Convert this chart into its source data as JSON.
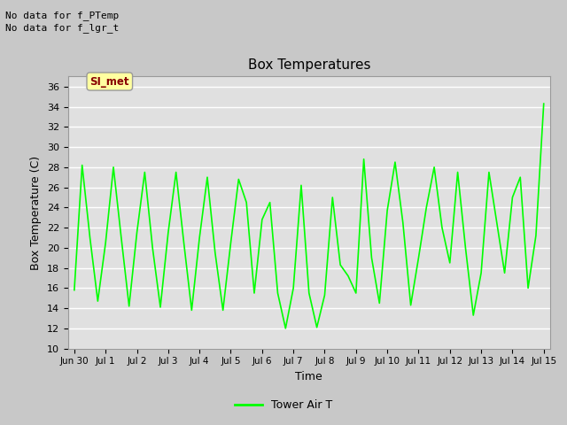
{
  "title": "Box Temperatures",
  "xlabel": "Time",
  "ylabel": "Box Temperature (C)",
  "text_no_data_1": "No data for f_PTemp",
  "text_no_data_2": "No data for f_lgr_t",
  "legend_label": "Tower Air T",
  "legend_color": "#00FF00",
  "line_color": "#00FF00",
  "fig_facecolor": "#C8C8C8",
  "axes_facecolor": "#E0E0E0",
  "ylim": [
    10,
    37
  ],
  "yticks": [
    10,
    12,
    14,
    16,
    18,
    20,
    22,
    24,
    26,
    28,
    30,
    32,
    34,
    36
  ],
  "si_met_label": "SI_met",
  "si_met_color_bg": "#FFFFA0",
  "si_met_color_text": "#880000",
  "x_data": [
    0.0,
    0.25,
    0.5,
    0.75,
    1.0,
    1.25,
    1.5,
    1.75,
    2.0,
    2.25,
    2.5,
    2.75,
    3.0,
    3.25,
    3.5,
    3.75,
    4.0,
    4.25,
    4.5,
    4.75,
    5.0,
    5.25,
    5.5,
    5.75,
    6.0,
    6.25,
    6.5,
    6.75,
    7.0,
    7.25,
    7.5,
    7.75,
    8.0,
    8.25,
    8.5,
    8.75,
    9.0,
    9.25,
    9.5,
    9.75,
    10.0,
    10.25,
    10.5,
    10.75,
    11.0,
    11.25,
    11.5,
    11.75,
    12.0,
    12.25,
    12.5,
    12.75,
    13.0,
    13.25,
    13.5,
    13.75,
    14.0,
    14.25,
    14.5,
    14.75,
    15.0
  ],
  "y_data": [
    15.8,
    28.2,
    21.0,
    14.7,
    20.5,
    28.0,
    21.0,
    14.2,
    21.5,
    27.5,
    20.0,
    14.1,
    21.5,
    27.5,
    20.5,
    13.8,
    21.0,
    27.0,
    19.5,
    13.8,
    20.5,
    26.8,
    24.5,
    15.5,
    22.8,
    24.5,
    15.5,
    12.0,
    16.0,
    26.2,
    15.5,
    12.1,
    15.3,
    25.0,
    18.3,
    17.2,
    15.5,
    28.8,
    19.0,
    14.5,
    23.7,
    28.5,
    22.5,
    14.3,
    19.0,
    24.0,
    28.0,
    22.0,
    18.5,
    27.5,
    20.0,
    13.3,
    17.5,
    27.5,
    22.5,
    17.5,
    25.0,
    27.0,
    16.0,
    21.2,
    34.3
  ],
  "xtick_labels": [
    "Jun 30",
    "Jul 1",
    "Jul 2",
    "Jul 3",
    "Jul 4",
    "Jul 5",
    "Jul 6",
    "Jul 7",
    "Jul 8",
    "Jul 9",
    "Jul 10",
    "Jul 11",
    "Jul 12",
    "Jul 13",
    "Jul 14",
    "Jul 15"
  ],
  "xtick_positions": [
    0,
    1,
    2,
    3,
    4,
    5,
    6,
    7,
    8,
    9,
    10,
    11,
    12,
    13,
    14,
    15
  ]
}
